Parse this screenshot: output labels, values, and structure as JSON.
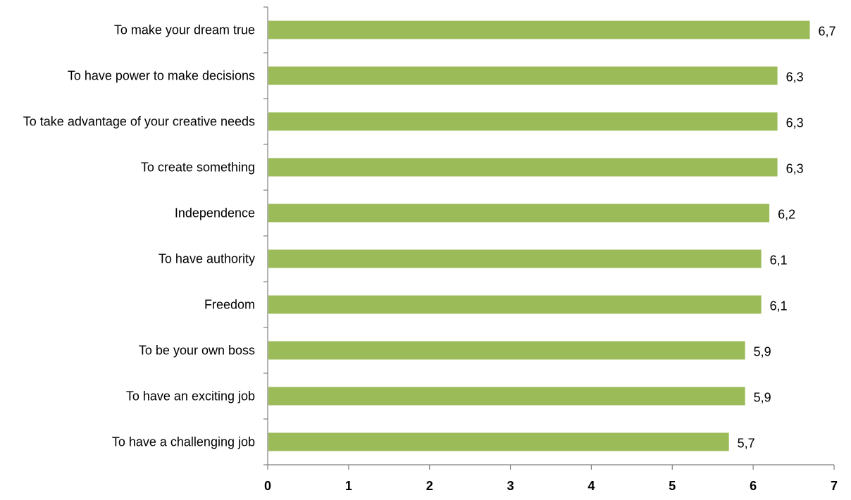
{
  "chart_data": {
    "type": "bar",
    "orientation": "horizontal",
    "categories": [
      "To make your dream true",
      "To have power to make decisions",
      "To take advantage of your creative needs",
      "To create something",
      "Independence",
      "To have authority",
      "Freedom",
      "To be your own boss",
      "To have an exciting job",
      "To have a challenging job"
    ],
    "values": [
      6.7,
      6.3,
      6.3,
      6.3,
      6.2,
      6.1,
      6.1,
      5.9,
      5.9,
      5.7
    ],
    "value_labels": [
      "6,7",
      "6,3",
      "6,3",
      "6,3",
      "6,2",
      "6,1",
      "6,1",
      "5,9",
      "5,9",
      "5,7"
    ],
    "xlim": [
      0,
      7
    ],
    "x_ticks": [
      0,
      1,
      2,
      3,
      4,
      5,
      6,
      7
    ],
    "x_tick_labels": [
      "0",
      "1",
      "2",
      "3",
      "4",
      "5",
      "6",
      "7"
    ],
    "title": "",
    "xlabel": "",
    "ylabel": "",
    "grid": false,
    "legend": "none",
    "bar_color": "#9bbb59",
    "axis_color": "#808080"
  }
}
